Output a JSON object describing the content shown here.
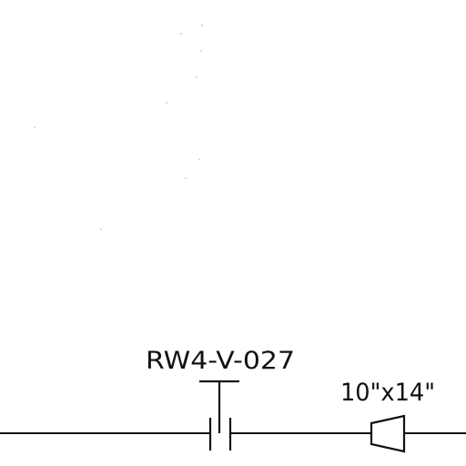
{
  "diagram": {
    "valve": {
      "tag": "RW4-V-027"
    },
    "reducer": {
      "size": "10\"x14\""
    },
    "colors": {
      "line": "#111111",
      "background": "#ffffff"
    }
  }
}
